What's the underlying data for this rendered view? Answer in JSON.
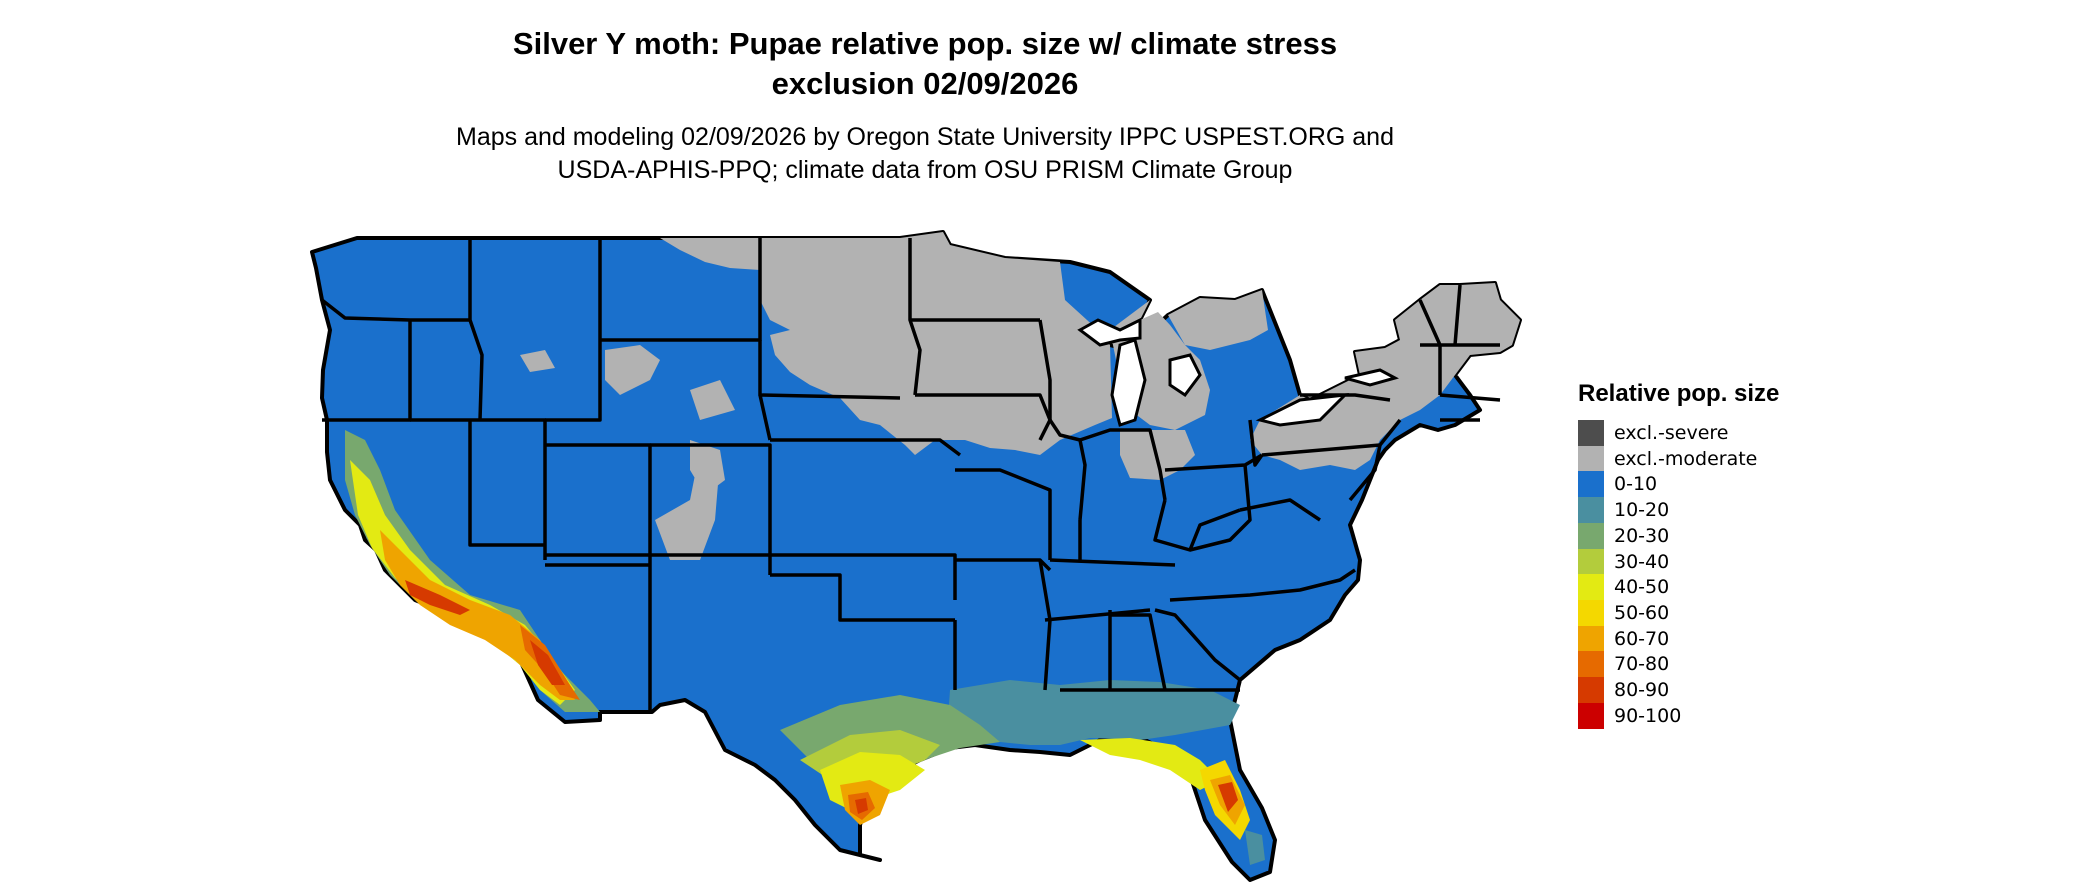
{
  "title_line1": "Silver Y moth: Pupae relative pop. size w/ climate stress",
  "title_line2": "exclusion 02/09/2026",
  "subtitle_line1": "Maps and modeling 02/09/2026 by Oregon State University IPPC USPEST.ORG and",
  "subtitle_line2": "USDA-APHIS-PPQ; climate data from OSU PRISM Climate Group",
  "legend": {
    "title": "Relative pop. size",
    "items": [
      {
        "label": "excl.-severe",
        "color": "#4d4d4d"
      },
      {
        "label": "excl.-moderate",
        "color": "#b2b2b2"
      },
      {
        "label": "0-10",
        "color": "#1a70cc"
      },
      {
        "label": "10-20",
        "color": "#4a8fa0"
      },
      {
        "label": "20-30",
        "color": "#78a86e"
      },
      {
        "label": "30-40",
        "color": "#b3cc3c"
      },
      {
        "label": "40-50",
        "color": "#e3ea13"
      },
      {
        "label": "50-60",
        "color": "#f4d800"
      },
      {
        "label": "60-70",
        "color": "#efa400"
      },
      {
        "label": "70-80",
        "color": "#e66a00"
      },
      {
        "label": "80-90",
        "color": "#d63a00"
      },
      {
        "label": "90-100",
        "color": "#cc0000"
      }
    ]
  },
  "map": {
    "region": "Contiguous United States",
    "colors": {
      "base": "#1a70cc",
      "excluded": "#b2b2b2",
      "border": "#000000"
    }
  }
}
